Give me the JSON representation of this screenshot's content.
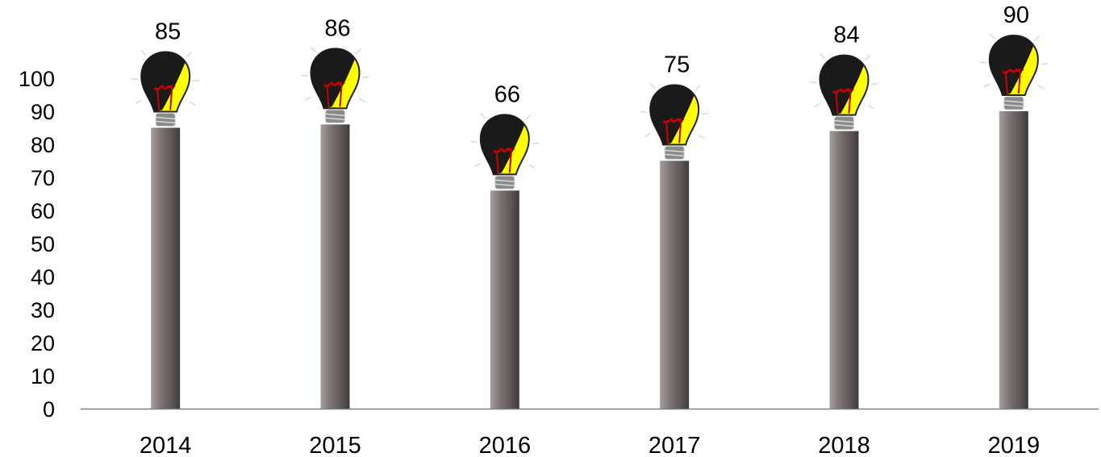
{
  "chart_data": {
    "type": "bar",
    "categories": [
      "2014",
      "2015",
      "2016",
      "2017",
      "2018",
      "2019"
    ],
    "values": [
      85,
      86,
      66,
      75,
      84,
      90
    ],
    "ylim": [
      0,
      100
    ],
    "yticks": [
      0,
      10,
      20,
      30,
      40,
      50,
      60,
      70,
      80,
      90,
      100
    ],
    "grid": false,
    "legend": "none",
    "title": "",
    "xlabel": "",
    "ylabel": "",
    "bar_marker": "lightbulb-icon",
    "colors": {
      "bar_dark": "#4d4748",
      "bar_mid": "#7b7374",
      "bar_light": "#a59d9e",
      "bulb_dark": "#1a1a1a",
      "bulb_glow": "#ffff00",
      "filament": "#cc0000",
      "axis": "#7f7f7f"
    }
  }
}
